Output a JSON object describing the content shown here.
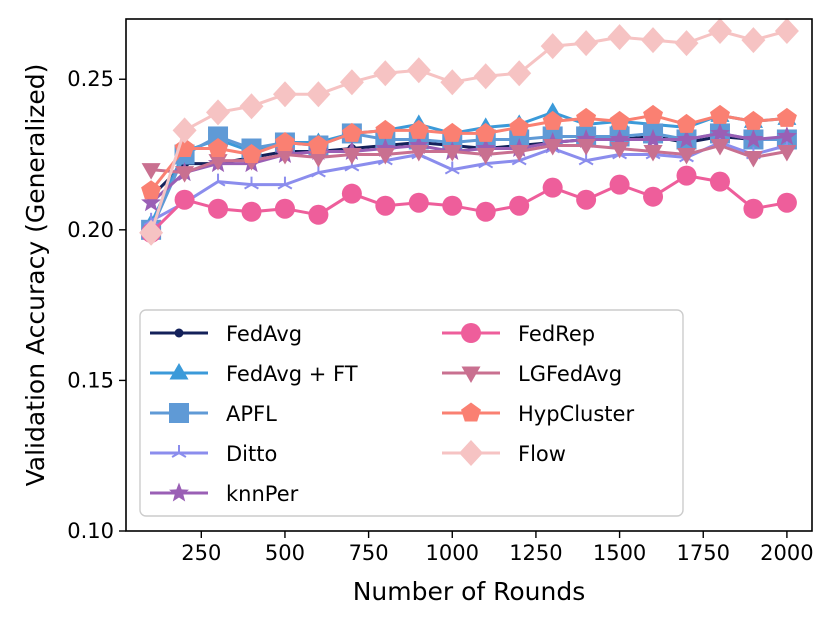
{
  "chart_data": {
    "type": "line",
    "xlabel": "Number of Rounds",
    "ylabel": "Validation Accuracy (Generalized)",
    "xlim": [
      25,
      2075
    ],
    "ylim": [
      0.1,
      0.27
    ],
    "xticks": [
      250,
      500,
      750,
      1000,
      1250,
      1500,
      1750,
      2000
    ],
    "yticks": [
      0.1,
      0.15,
      0.2,
      0.25
    ],
    "xtick_labels": [
      "250",
      "500",
      "750",
      "1000",
      "1250",
      "1500",
      "1750",
      "2000"
    ],
    "ytick_labels": [
      "0.10",
      "0.15",
      "0.20",
      "0.25"
    ],
    "grid": false,
    "legend": {
      "placement": "lower-left",
      "columns": 2
    },
    "x": [
      100,
      200,
      300,
      400,
      500,
      600,
      700,
      800,
      900,
      1000,
      1100,
      1200,
      1300,
      1400,
      1500,
      1600,
      1700,
      1800,
      1900,
      2000
    ],
    "series": [
      {
        "name": "FedAvg",
        "color": "#14215a",
        "marker": "circle",
        "values": [
          0.211,
          0.222,
          0.222,
          0.224,
          0.226,
          0.226,
          0.227,
          0.228,
          0.229,
          0.228,
          0.227,
          0.228,
          0.229,
          0.23,
          0.23,
          0.231,
          0.229,
          0.231,
          0.23,
          0.23
        ]
      },
      {
        "name": "FedAvg + FT",
        "color": "#3b9ad9",
        "marker": "triangle-up",
        "values": [
          0.202,
          0.226,
          0.23,
          0.226,
          0.229,
          0.229,
          0.232,
          0.233,
          0.235,
          0.232,
          0.234,
          0.235,
          0.239,
          0.235,
          0.236,
          0.235,
          0.234,
          0.238,
          0.236,
          0.237
        ]
      },
      {
        "name": "APFL",
        "color": "#5f9ad6",
        "marker": "square",
        "values": [
          0.2,
          0.225,
          0.231,
          0.227,
          0.229,
          0.228,
          0.232,
          0.23,
          0.23,
          0.229,
          0.23,
          0.23,
          0.231,
          0.231,
          0.231,
          0.232,
          0.23,
          0.232,
          0.23,
          0.23
        ]
      },
      {
        "name": "Ditto",
        "color": "#8b8ded",
        "marker": "tri-down",
        "values": [
          0.203,
          0.209,
          0.216,
          0.215,
          0.215,
          0.219,
          0.221,
          0.223,
          0.225,
          0.22,
          0.222,
          0.223,
          0.227,
          0.223,
          0.225,
          0.225,
          0.224,
          0.229,
          0.225,
          0.228
        ]
      },
      {
        "name": "knnPer",
        "color": "#9a5fb5",
        "marker": "star",
        "values": [
          0.209,
          0.219,
          0.222,
          0.222,
          0.225,
          0.226,
          0.226,
          0.227,
          0.228,
          0.226,
          0.227,
          0.227,
          0.229,
          0.23,
          0.23,
          0.23,
          0.23,
          0.232,
          0.23,
          0.231
        ]
      },
      {
        "name": "FedRep",
        "color": "#ee5e9b",
        "marker": "circle",
        "values": [
          0.199,
          0.21,
          0.207,
          0.206,
          0.207,
          0.205,
          0.212,
          0.208,
          0.209,
          0.208,
          0.206,
          0.208,
          0.214,
          0.21,
          0.215,
          0.211,
          0.218,
          0.216,
          0.207,
          0.209
        ]
      },
      {
        "name": "LGFedAvg",
        "color": "#c97090",
        "marker": "triangle-down",
        "values": [
          0.22,
          0.219,
          0.223,
          0.223,
          0.225,
          0.224,
          0.225,
          0.225,
          0.226,
          0.226,
          0.225,
          0.226,
          0.228,
          0.228,
          0.227,
          0.226,
          0.225,
          0.228,
          0.224,
          0.226
        ]
      },
      {
        "name": "HypCluster",
        "color": "#fa8072",
        "marker": "pentagon",
        "values": [
          0.213,
          0.227,
          0.227,
          0.225,
          0.229,
          0.228,
          0.232,
          0.233,
          0.233,
          0.232,
          0.232,
          0.234,
          0.236,
          0.237,
          0.236,
          0.238,
          0.235,
          0.238,
          0.236,
          0.237
        ]
      },
      {
        "name": "Flow",
        "color": "#f6c3c3",
        "marker": "diamond",
        "values": [
          0.199,
          0.233,
          0.239,
          0.241,
          0.245,
          0.245,
          0.249,
          0.252,
          0.253,
          0.249,
          0.251,
          0.252,
          0.261,
          0.262,
          0.264,
          0.263,
          0.262,
          0.266,
          0.263,
          0.266
        ]
      }
    ]
  }
}
